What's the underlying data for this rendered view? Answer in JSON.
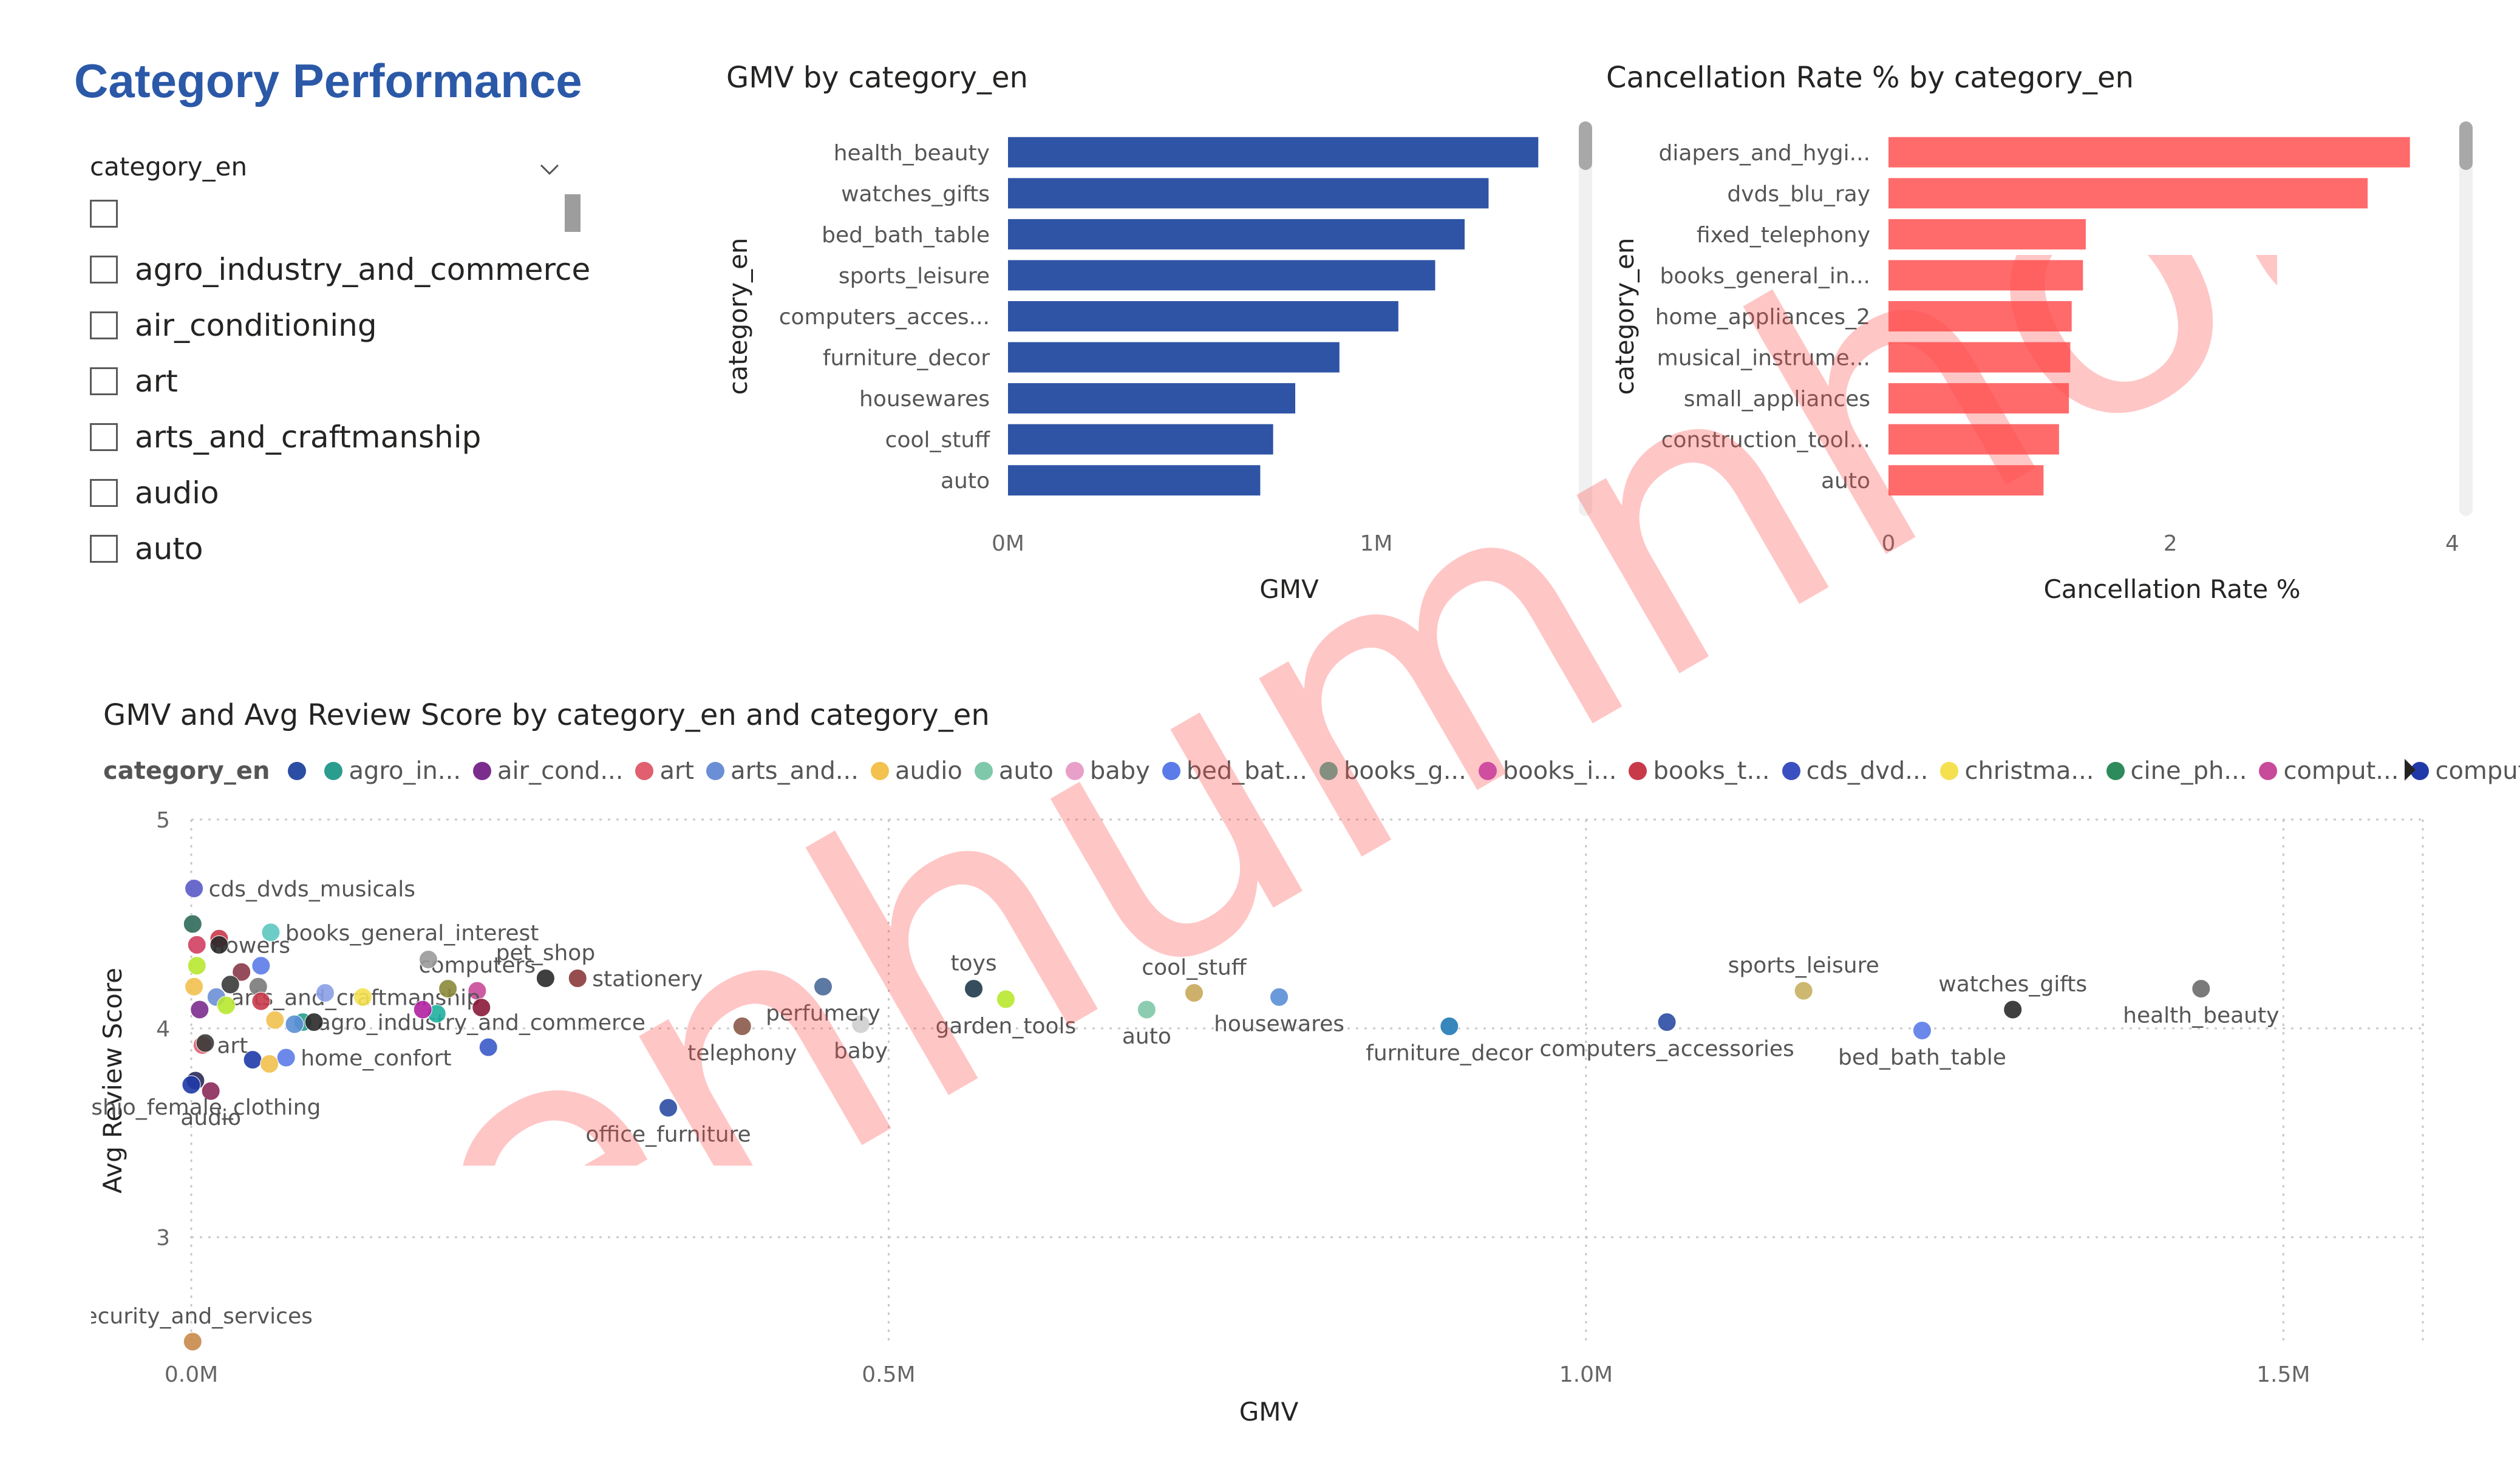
{
  "page": {
    "title": "Category Performance"
  },
  "slicer": {
    "header": "category_en",
    "items": [
      "",
      "agro_industry_and_commerce",
      "air_conditioning",
      "art",
      "arts_and_craftmanship",
      "audio",
      "auto"
    ]
  },
  "legend": {
    "title": "category_en",
    "items": [
      {
        "label": "",
        "color": "#2b4da3"
      },
      {
        "label": "agro_in...",
        "color": "#2a9d8f"
      },
      {
        "label": "air_cond...",
        "color": "#7b2d8e"
      },
      {
        "label": "art",
        "color": "#e06070"
      },
      {
        "label": "arts_and...",
        "color": "#6b8fd6"
      },
      {
        "label": "audio",
        "color": "#f2c14e"
      },
      {
        "label": "auto",
        "color": "#7fc8a9"
      },
      {
        "label": "baby",
        "color": "#e8a0c8"
      },
      {
        "label": "bed_bat...",
        "color": "#5b7be8"
      },
      {
        "label": "books_g...",
        "color": "#4caf99"
      },
      {
        "label": "books_i...",
        "color": "#b84fc7"
      },
      {
        "label": "books_t...",
        "color": "#c83a4a"
      },
      {
        "label": "cds_dvd...",
        "color": "#3a4fc0"
      },
      {
        "label": "christma...",
        "color": "#f5e050"
      },
      {
        "label": "cine_ph...",
        "color": "#2d8a5a"
      },
      {
        "label": "comput...",
        "color": "#c84a9a"
      },
      {
        "label": "comput...",
        "color": "#1f3aa8"
      }
    ]
  },
  "watermark": {
    "text": "lenhumnhot"
  },
  "colors": {
    "title_blue": "#2b59a8",
    "bar_blue": "#2f54a6",
    "bar_red": "#ff6b6b"
  },
  "chart_data": [
    {
      "type": "bar",
      "orientation": "horizontal",
      "title": "GMV by category_en",
      "xlabel": "GMV",
      "ylabel": "category_en",
      "categories": [
        "health_beauty",
        "watches_gifts",
        "bed_bath_table",
        "sports_leisure",
        "computers_acces...",
        "furniture_decor",
        "housewares",
        "cool_stuff",
        "auto"
      ],
      "values": [
        1440000,
        1305000,
        1240000,
        1160000,
        1060000,
        900000,
        780000,
        720000,
        685000
      ],
      "xlim": [
        0,
        1550000
      ],
      "xticks": [
        0,
        1000000
      ],
      "xtick_labels": [
        "0M",
        "1M"
      ],
      "color": "#2f54a6",
      "grid": false
    },
    {
      "type": "bar",
      "orientation": "horizontal",
      "title": "Cancellation Rate % by category_en",
      "xlabel": "Cancellation Rate %",
      "ylabel": "category_en",
      "categories": [
        "diapers_and_hygi...",
        "dvds_blu_ray",
        "fixed_telephony",
        "books_general_in...",
        "home_appliances_2",
        "musical_instrume...",
        "small_appliances",
        "construction_tool...",
        "auto"
      ],
      "values": [
        3.7,
        3.4,
        1.4,
        1.38,
        1.3,
        1.29,
        1.28,
        1.21,
        1.1
      ],
      "xlim": [
        0,
        4.05
      ],
      "xticks": [
        0,
        2,
        4
      ],
      "xtick_labels": [
        "0",
        "2",
        "4"
      ],
      "color": "#ff6b6b",
      "grid": false
    },
    {
      "type": "scatter",
      "title": "GMV and Avg Review Score by category_en and category_en",
      "xlabel": "GMV",
      "ylabel": "Avg Review Score",
      "xlim": [
        0,
        1600000
      ],
      "ylim": [
        2.5,
        5.0
      ],
      "xticks": [
        0,
        500000,
        1000000,
        1500000
      ],
      "xtick_labels": [
        "0.0M",
        "0.5M",
        "1.0M",
        "1.5M"
      ],
      "yticks": [
        3,
        4,
        5
      ],
      "ytick_labels": [
        "3",
        "4",
        "5"
      ],
      "grid": true,
      "legend_position": "top",
      "points": [
        {
          "label": "health_beauty",
          "x": 1441000,
          "y": 4.19,
          "color": "#6b6b6b",
          "label_pos": "below"
        },
        {
          "label": "watches_gifts",
          "x": 1306000,
          "y": 4.09,
          "color": "#2a2a2a",
          "label_pos": "above"
        },
        {
          "label": "bed_bath_table",
          "x": 1241000,
          "y": 3.99,
          "color": "#5b7be8",
          "label_pos": "below"
        },
        {
          "label": "sports_leisure",
          "x": 1156000,
          "y": 4.18,
          "color": "#c8b060",
          "label_pos": "above"
        },
        {
          "label": "computers_accessories",
          "x": 1058000,
          "y": 4.03,
          "color": "#2b4da3",
          "label_pos": "below"
        },
        {
          "label": "furniture_decor",
          "x": 902000,
          "y": 4.01,
          "color": "#2179b5",
          "label_pos": "below"
        },
        {
          "label": "housewares",
          "x": 780000,
          "y": 4.15,
          "color": "#5b8fd6",
          "label_pos": "below"
        },
        {
          "label": "cool_stuff",
          "x": 719000,
          "y": 4.17,
          "color": "#c8a85a",
          "label_pos": "above"
        },
        {
          "label": "auto",
          "x": 685000,
          "y": 4.09,
          "color": "#7fc8a9",
          "label_pos": "below"
        },
        {
          "label": "garden_tools",
          "x": 584000,
          "y": 4.14,
          "color": "#b8e830",
          "label_pos": "below"
        },
        {
          "label": "toys",
          "x": 561000,
          "y": 4.19,
          "color": "#1f3a4a",
          "label_pos": "above"
        },
        {
          "label": "baby",
          "x": 480000,
          "y": 4.02,
          "color": "#cfcfcf",
          "label_pos": "below"
        },
        {
          "label": "perfumery",
          "x": 453000,
          "y": 4.2,
          "color": "#4a6a9a",
          "label_pos": "below"
        },
        {
          "label": "telephony",
          "x": 395000,
          "y": 4.01,
          "color": "#8a5a4a",
          "label_pos": "below"
        },
        {
          "label": "office_furniture",
          "x": 342000,
          "y": 3.62,
          "color": "#2b4da3",
          "label_pos": "below"
        },
        {
          "label": "stationery",
          "x": 277000,
          "y": 4.24,
          "color": "#8a3a3a",
          "label_pos": "right"
        },
        {
          "label": "pet_shop",
          "x": 254000,
          "y": 4.24,
          "color": "#2a2a2a",
          "label_pos": "above"
        },
        {
          "label": "computers",
          "x": 205000,
          "y": 4.18,
          "color": "#c84a9a",
          "label_pos": "above"
        },
        {
          "label": "home_confort",
          "x": 68000,
          "y": 3.86,
          "color": "#5b7be8",
          "label_pos": "right"
        },
        {
          "label": "agro_industry_and_commerce",
          "x": 80000,
          "y": 4.03,
          "color": "#2a9d8f",
          "label_pos": "right"
        },
        {
          "label": "arts_and_craftmanship",
          "x": 18000,
          "y": 4.15,
          "color": "#6b8fd6",
          "label_pos": "right"
        },
        {
          "label": "art",
          "x": 8000,
          "y": 3.92,
          "color": "#e06070",
          "label_pos": "right"
        },
        {
          "label": "audio",
          "x": 14000,
          "y": 3.7,
          "color": "#8a2a5a",
          "label_pos": "below"
        },
        {
          "label": "fashio_female_clothing",
          "x": 3000,
          "y": 3.75,
          "color": "#2a2a5a",
          "label_pos": "below"
        },
        {
          "label": "flowers",
          "x": 4000,
          "y": 4.4,
          "color": "#d04060",
          "label_pos": "right"
        },
        {
          "label": "books_general_interest",
          "x": 57000,
          "y": 4.46,
          "color": "#5cc8c0",
          "label_pos": "right"
        },
        {
          "label": "cds_dvds_musicals",
          "x": 2000,
          "y": 4.67,
          "color": "#5a5ac8",
          "label_pos": "right"
        },
        {
          "label": "security_and_services",
          "x": 1000,
          "y": 2.5,
          "color": "#c88a4a",
          "label_pos": "above"
        },
        {
          "label": "",
          "x": 20000,
          "y": 4.43,
          "color": "#c83a4a"
        },
        {
          "label": "",
          "x": 20000,
          "y": 4.4,
          "color": "#2a2a2a"
        },
        {
          "label": "",
          "x": 36000,
          "y": 4.27,
          "color": "#8a3a4a"
        },
        {
          "label": "",
          "x": 28000,
          "y": 4.21,
          "color": "#3a3a3a"
        },
        {
          "label": "",
          "x": 48000,
          "y": 4.2,
          "color": "#7a7a7a"
        },
        {
          "label": "",
          "x": 50000,
          "y": 4.13,
          "color": "#c83a4a"
        },
        {
          "label": "",
          "x": 25000,
          "y": 4.11,
          "color": "#b8e830"
        },
        {
          "label": "",
          "x": 6000,
          "y": 4.09,
          "color": "#7b2d8e"
        },
        {
          "label": "",
          "x": 60000,
          "y": 4.04,
          "color": "#f2c14e"
        },
        {
          "label": "",
          "x": 74000,
          "y": 4.02,
          "color": "#5b8fd6"
        },
        {
          "label": "",
          "x": 88000,
          "y": 4.03,
          "color": "#2a2a2a"
        },
        {
          "label": "",
          "x": 10000,
          "y": 3.93,
          "color": "#3a3a3a"
        },
        {
          "label": "",
          "x": 44000,
          "y": 3.85,
          "color": "#1f3aa8"
        },
        {
          "label": "",
          "x": 56000,
          "y": 3.83,
          "color": "#f2c14e"
        },
        {
          "label": "",
          "x": 0,
          "y": 3.73,
          "color": "#1f3aa8"
        },
        {
          "label": "",
          "x": 1000,
          "y": 4.5,
          "color": "#2d6a5a"
        },
        {
          "label": "",
          "x": 170000,
          "y": 4.33,
          "color": "#9a9a9a"
        },
        {
          "label": "",
          "x": 184000,
          "y": 4.19,
          "color": "#8a8a3a"
        },
        {
          "label": "",
          "x": 208000,
          "y": 4.1,
          "color": "#8a1a3a"
        },
        {
          "label": "",
          "x": 213000,
          "y": 3.91,
          "color": "#3a5ac8"
        },
        {
          "label": "",
          "x": 176000,
          "y": 4.07,
          "color": "#20b0a0"
        },
        {
          "label": "",
          "x": 166000,
          "y": 4.09,
          "color": "#b020a0"
        },
        {
          "label": "",
          "x": 123000,
          "y": 4.15,
          "color": "#f5e050"
        },
        {
          "label": "",
          "x": 96000,
          "y": 4.17,
          "color": "#8aa0e8"
        },
        {
          "label": "",
          "x": 50000,
          "y": 4.3,
          "color": "#5b7be8"
        },
        {
          "label": "",
          "x": 2000,
          "y": 4.2,
          "color": "#f2c14e"
        },
        {
          "label": "",
          "x": 4000,
          "y": 4.3,
          "color": "#b8e830"
        }
      ]
    }
  ]
}
